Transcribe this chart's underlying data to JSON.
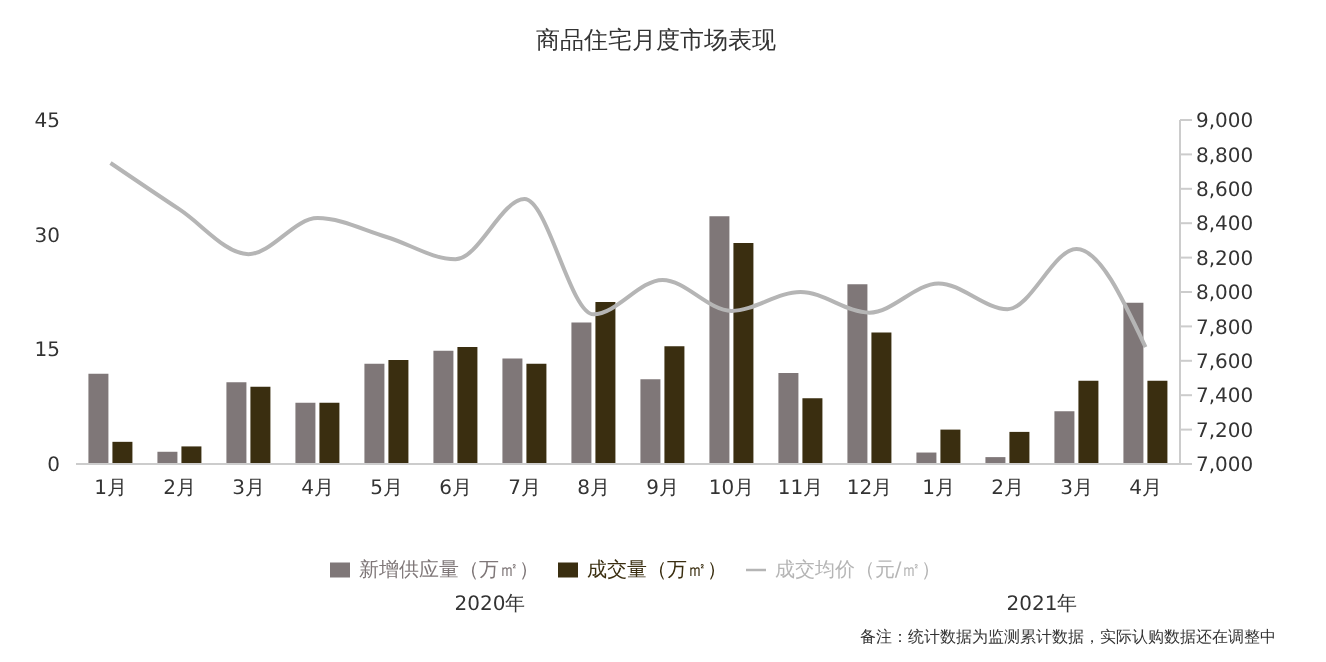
{
  "chart_data": {
    "type": "bar",
    "title": "商品住宅月度市场表现",
    "categories": [
      "1月",
      "2月",
      "3月",
      "4月",
      "5月",
      "6月",
      "7月",
      "8月",
      "9月",
      "10月",
      "11月",
      "12月",
      "1月",
      "2月",
      "3月",
      "4月"
    ],
    "series": [
      {
        "name": "新增供应量（万㎡）",
        "color": "#7f7778",
        "values": [
          11.8,
          1.6,
          10.7,
          8.0,
          13.1,
          14.8,
          13.8,
          18.5,
          11.1,
          32.4,
          11.9,
          23.5,
          1.5,
          0.9,
          6.9,
          21.1
        ]
      },
      {
        "name": "成交量（万㎡）",
        "color": "#3a2e10",
        "values": [
          2.9,
          2.3,
          10.1,
          8.0,
          13.6,
          15.3,
          13.1,
          21.2,
          15.4,
          28.9,
          8.6,
          17.2,
          4.5,
          4.2,
          10.9,
          10.9
        ]
      },
      {
        "name": "成交均价（元/㎡）",
        "type": "line",
        "axis": "y2",
        "color": "#b5b5b5",
        "values": [
          8750,
          8480,
          8220,
          8430,
          8320,
          8190,
          8540,
          7870,
          8070,
          7890,
          8000,
          7880,
          8050,
          7900,
          8250,
          7680
        ]
      }
    ],
    "ylim": [
      0,
      45
    ],
    "yticks": [
      0,
      15,
      30,
      45
    ],
    "y2lim": [
      7000,
      9000
    ],
    "y2ticks": [
      {
        "value": 7000,
        "label": "7,000"
      },
      {
        "value": 7200,
        "label": "7,200"
      },
      {
        "value": 7400,
        "label": "7,400"
      },
      {
        "value": 7600,
        "label": "7,600"
      },
      {
        "value": 7800,
        "label": "7,800"
      },
      {
        "value": 8000,
        "label": "8,000"
      },
      {
        "value": 8200,
        "label": "8,200"
      },
      {
        "value": 8400,
        "label": "8,400"
      },
      {
        "value": 8600,
        "label": "8,600"
      },
      {
        "value": 8800,
        "label": "8,800"
      },
      {
        "value": 9000,
        "label": "9,000"
      }
    ],
    "legend": "bottom",
    "marker": "none",
    "grid": false,
    "annotations": [
      "2020年",
      "2021年",
      "备注：统计数据为监测累计数据，实际认购数据还在调整中"
    ]
  }
}
